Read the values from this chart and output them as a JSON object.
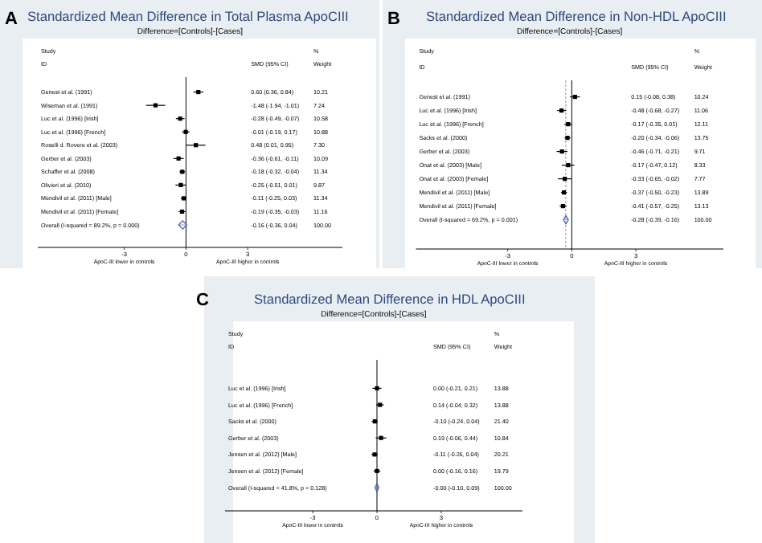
{
  "chart_data": [
    {
      "type": "scatter",
      "orientation": "horizontal",
      "title": "Standardized Mean Difference in Total Plasma ApoCIII",
      "subtitle": "Difference=[Controls]-[Cases]",
      "categories": [
        "Genest et al. (1991)",
        "Wiseman et al. (1991)",
        "Luc et al. (1996) [Irish]",
        "Luc et al. (1996) [French]",
        "Roselli d. Rovere et al. (2003)",
        "Gerber et al. (2003)",
        "Schaffer et al. (2008)",
        "Olivieri et al. (2010)",
        "Mendivil et al. (2011) [Male]",
        "Mendivil et al. (2011) [Female]",
        "Overall  (I-squared = 89.2%, p = 0.000)"
      ],
      "series": [
        {
          "color": "#000000",
          "marker": "square",
          "values": [
            0.6,
            -1.48,
            -0.28,
            -0.01,
            0.48,
            -0.36,
            -0.18,
            -0.25,
            -0.11,
            -0.19,
            null
          ],
          "errors": [
            [
              0.36,
              0.84
            ],
            [
              -1.94,
              -1.01
            ],
            [
              -0.49,
              -0.07
            ],
            [
              -0.19,
              0.17
            ],
            [
              0.01,
              0.95
            ],
            [
              -0.61,
              -0.11
            ],
            [
              -0.32,
              -0.04
            ],
            [
              -0.51,
              0.01
            ],
            [
              -0.25,
              0.03
            ],
            [
              -0.35,
              -0.03
            ],
            null
          ]
        },
        {
          "color": "#4a5fa8",
          "marker": "diamond",
          "values": [
            null,
            null,
            null,
            null,
            null,
            null,
            null,
            null,
            null,
            null,
            -0.16
          ],
          "errors": [
            null,
            null,
            null,
            null,
            null,
            null,
            null,
            null,
            null,
            null,
            [
              -0.36,
              0.04
            ]
          ]
        }
      ],
      "xlim": [
        -7.2,
        7.6
      ],
      "xticks": [
        -3,
        0,
        3
      ],
      "ref_lines": [
        {
          "axis": "x",
          "value": 0,
          "color": "#000000"
        }
      ],
      "annotations": [
        "A",
        "Study",
        "ID",
        "SMD (95% CI)",
        "%",
        "Weight",
        "ApoC-III lower in controls",
        "ApoC-III higher in controls",
        "0.60 (0.36, 0.84)",
        "10.21",
        "-1.48 (-1.94, -1.01)",
        "7.24",
        "-0.28 (-0.49, -0.07)",
        "10.58",
        "-0.01 (-0.19, 0.17)",
        "10.88",
        "0.48 (0.01, 0.95)",
        "7.30",
        "-0.36 (-0.61, -0.11)",
        "10.09",
        "-0.18 (-0.32, -0.04)",
        "11.34",
        "-0.25 (-0.51, 0.01)",
        "9.87",
        "-0.11 (-0.25, 0.03)",
        "11.34",
        "-0.19 (-0.35, -0.03)",
        "11.16",
        "-0.16 (-0.36, 0.04)",
        "100.00"
      ]
    },
    {
      "type": "scatter",
      "orientation": "horizontal",
      "title": "Standardized Mean Difference in Non-HDL ApoCIII",
      "subtitle": "Difference=[Controls]-[Cases]",
      "categories": [
        "Genest et al. (1991)",
        "Luc et al. (1996) [Irish]",
        "Luc et al. (1996) [French]",
        "Sacks et al. (2000)",
        "Gerber et al. (2003)",
        "Onat et al. (2003) [Male]",
        "Onat et al. (2003) [Female]",
        "Mendivil et al. (2011) [Male]",
        "Mendivil et al. (2011) [Female]",
        "Overall  (I-squared = 69.2%, p = 0.001)"
      ],
      "series": [
        {
          "color": "#000000",
          "marker": "square",
          "values": [
            0.15,
            -0.48,
            -0.17,
            -0.2,
            -0.46,
            -0.17,
            -0.33,
            -0.37,
            -0.41,
            null
          ],
          "errors": [
            [
              -0.08,
              0.38
            ],
            [
              -0.68,
              -0.27
            ],
            [
              -0.35,
              0.01
            ],
            [
              -0.34,
              -0.06
            ],
            [
              -0.71,
              -0.21
            ],
            [
              -0.47,
              0.12
            ],
            [
              -0.65,
              -0.02
            ],
            [
              -0.5,
              -0.23
            ],
            [
              -0.57,
              -0.25
            ],
            null
          ]
        },
        {
          "color": "#4a5fa8",
          "marker": "diamond",
          "values": [
            null,
            null,
            null,
            null,
            null,
            null,
            null,
            null,
            null,
            -0.28
          ],
          "errors": [
            null,
            null,
            null,
            null,
            null,
            null,
            null,
            null,
            null,
            [
              -0.39,
              -0.16
            ]
          ]
        }
      ],
      "xlim": [
        -7.3,
        7.1
      ],
      "xticks": [
        -3,
        0,
        3
      ],
      "ref_lines": [
        {
          "axis": "x",
          "value": 0,
          "color": "#000000"
        },
        {
          "axis": "x",
          "value": -0.28,
          "color": "#999999",
          "line_style": "dashed"
        }
      ],
      "annotations": [
        "B",
        "Study",
        "ID",
        "SMD (95% CI)",
        "%",
        "Weight",
        "ApoC-III lower in controls",
        "ApoC-III higher in controls",
        "0.15 (-0.08, 0.38)",
        "10.24",
        "-0.48 (-0.68, -0.27)",
        "11.06",
        "-0.17 (-0.35, 0.01)",
        "12.11",
        "-0.20 (-0.34, -0.06)",
        "13.75",
        "-0.46 (-0.71, -0.21)",
        "9.71",
        "-0.17 (-0.47, 0.12)",
        "8.33",
        "-0.33 (-0.65, -0.02)",
        "7.77",
        "-0.37 (-0.50, -0.23)",
        "13.89",
        "-0.41 (-0.57, -0.25)",
        "13.13",
        "-0.28 (-0.39, -0.16)",
        "100.00"
      ]
    },
    {
      "type": "scatter",
      "orientation": "horizontal",
      "title": "Standardized Mean Difference in HDL ApoCIII",
      "subtitle": "Difference=[Controls]-[Cases]",
      "categories": [
        "Luc et al. (1996) [Irish]",
        "Luc et al. (1996) [French]",
        "Sacks et al. (2000)",
        "Gerber et al. (2003)",
        "Jensen et al. (2012) [Male]",
        "Jensen et al. (2012) [Female]",
        "Overall  (I-squared = 41.8%, p = 0.128)"
      ],
      "series": [
        {
          "color": "#000000",
          "marker": "square",
          "values": [
            0.0,
            0.14,
            -0.1,
            0.19,
            -0.11,
            0.0,
            null
          ],
          "errors": [
            [
              -0.21,
              0.21
            ],
            [
              -0.04,
              0.32
            ],
            [
              -0.24,
              0.04
            ],
            [
              -0.06,
              0.44
            ],
            [
              -0.26,
              0.04
            ],
            [
              -0.16,
              0.16
            ],
            null
          ]
        },
        {
          "color": "#4a5fa8",
          "marker": "diamond",
          "values": [
            null,
            null,
            null,
            null,
            null,
            null,
            -0.0
          ],
          "errors": [
            null,
            null,
            null,
            null,
            null,
            null,
            [
              -0.1,
              0.09
            ]
          ]
        }
      ],
      "xlim": [
        -7.1,
        6.8
      ],
      "xticks": [
        -3,
        0,
        3
      ],
      "ref_lines": [
        {
          "axis": "x",
          "value": 0,
          "color": "#000000"
        }
      ],
      "annotations": [
        "C",
        "Study",
        "ID",
        "SMD (95% CI)",
        "%",
        "Weight",
        "ApoC-III lower in controls",
        "ApoC-III higher in controls",
        "0.00 (-0.21, 0.21)",
        "13.88",
        "0.14 (-0.04, 0.32)",
        "13.88",
        "-0.10 (-0.24, 0.04)",
        "21.40",
        "0.19 (-0.06, 0.44)",
        "10.84",
        "-0.11 (-0.26, 0.04)",
        "20.21",
        "0.00 (-0.16, 0.16)",
        "19.79",
        "-0.00 (-0.10, 0.09)",
        "100.00"
      ]
    }
  ]
}
